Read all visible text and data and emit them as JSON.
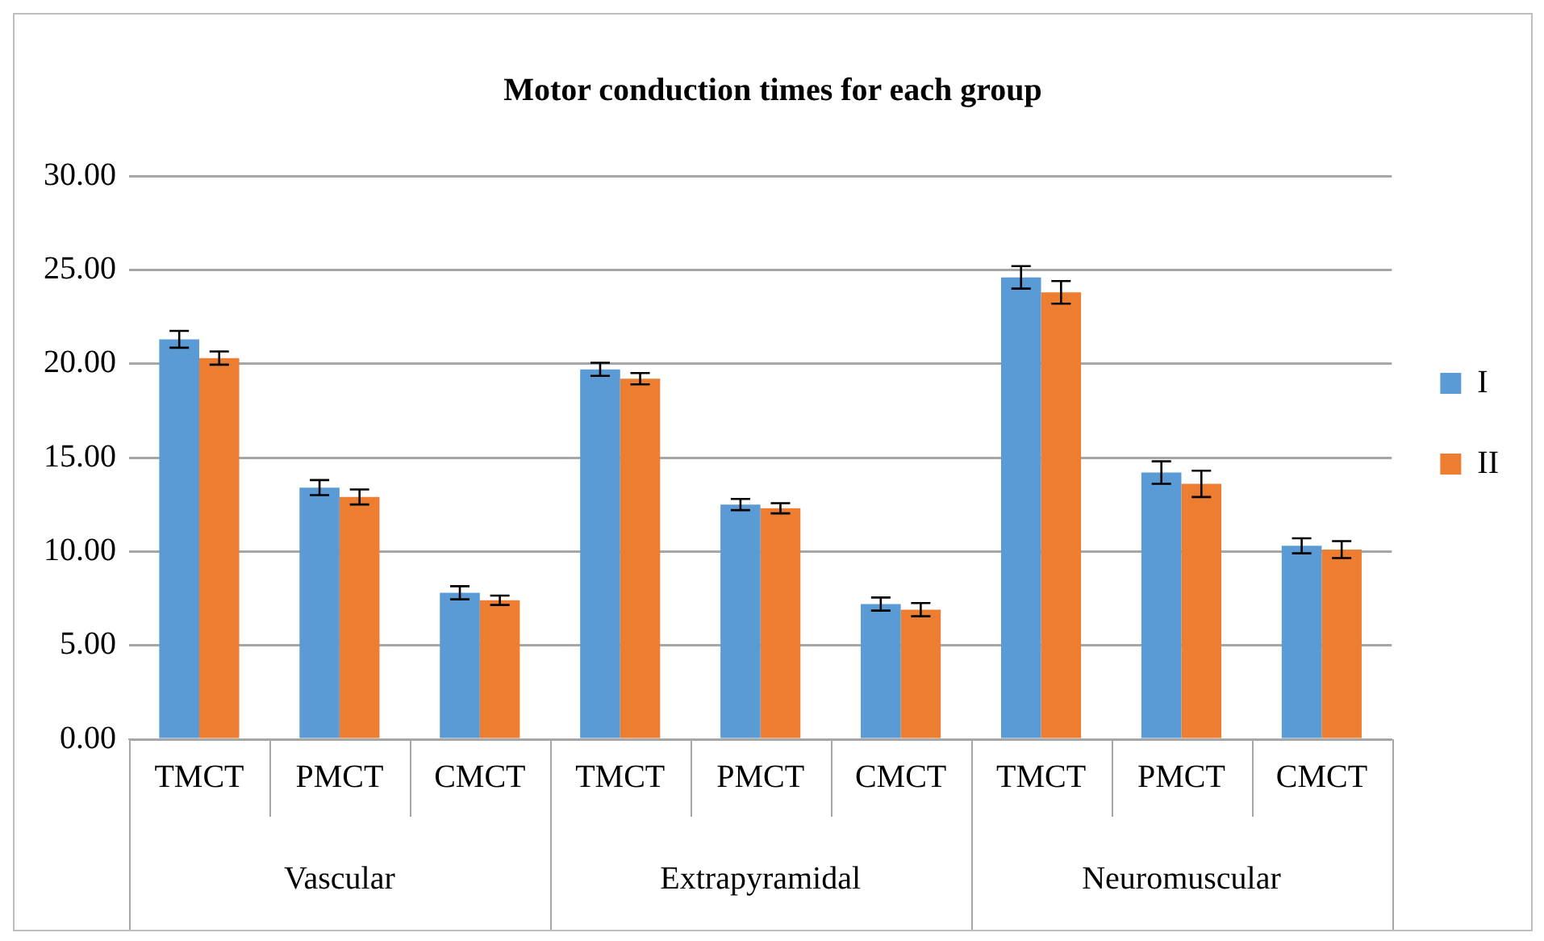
{
  "chart_data": {
    "type": "bar",
    "title": "Motor conduction times for each group",
    "categories": [
      "TMCT",
      "PMCT",
      "CMCT",
      "TMCT",
      "PMCT",
      "CMCT",
      "TMCT",
      "PMCT",
      "CMCT"
    ],
    "series": [
      {
        "name": "I",
        "color": "#5b9bd5",
        "values": [
          21.3,
          13.4,
          7.8,
          19.7,
          12.5,
          7.2,
          24.6,
          14.2,
          10.3
        ],
        "errors": [
          0.45,
          0.4,
          0.35,
          0.35,
          0.3,
          0.35,
          0.6,
          0.6,
          0.4
        ]
      },
      {
        "name": "II",
        "color": "#ed7d31",
        "values": [
          20.3,
          12.9,
          7.4,
          19.2,
          12.3,
          6.9,
          23.8,
          13.6,
          10.1
        ],
        "errors": [
          0.35,
          0.4,
          0.25,
          0.3,
          0.27,
          0.35,
          0.6,
          0.7,
          0.45
        ]
      }
    ],
    "annotations": [
      "Vascular",
      "Extrapyramidal",
      "Neuromuscular"
    ],
    "ylim": [
      0,
      30
    ],
    "yticks": [
      {
        "value": 0,
        "label": "0.00"
      },
      {
        "value": 5,
        "label": "5.00"
      },
      {
        "value": 10,
        "label": "10.00"
      },
      {
        "value": 15,
        "label": "15.00"
      },
      {
        "value": 20,
        "label": "20.00"
      },
      {
        "value": 25,
        "label": "25.00"
      },
      {
        "value": 30,
        "label": "30.00"
      }
    ],
    "grid": "y",
    "legend": "right"
  }
}
